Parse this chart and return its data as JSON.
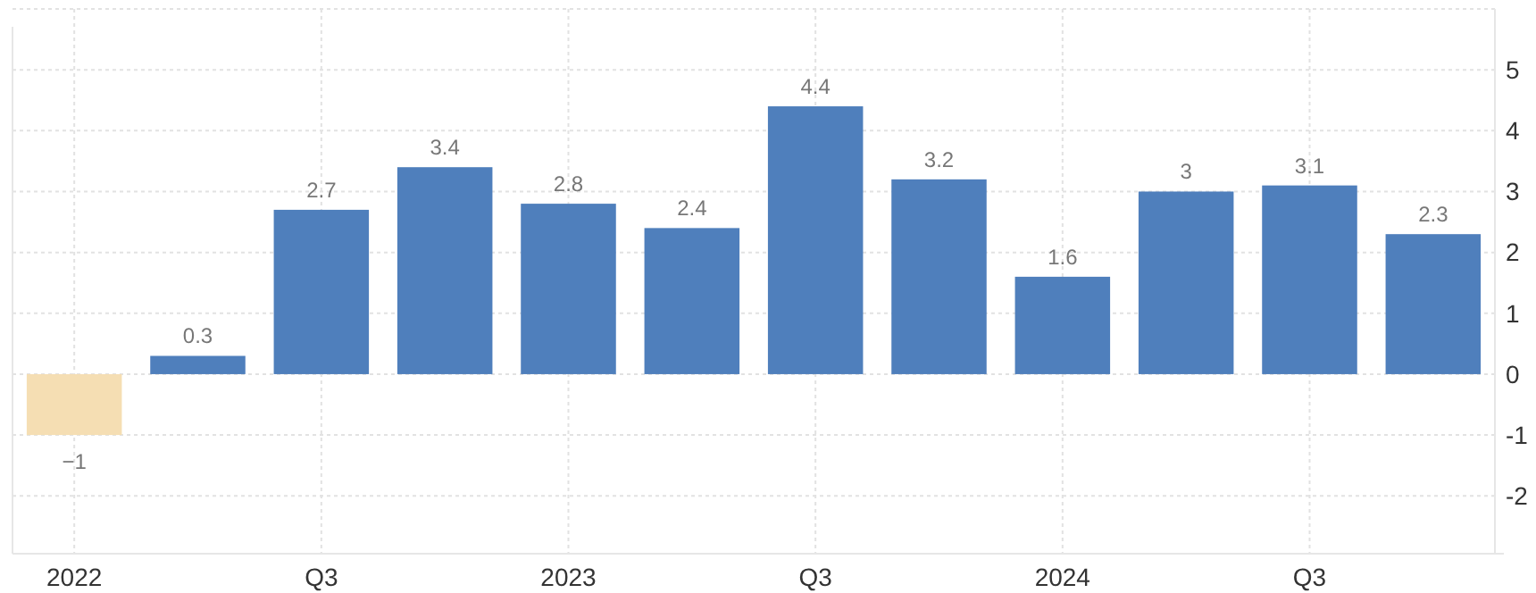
{
  "chart_data": {
    "type": "bar",
    "categories": [
      "2022",
      null,
      "Q3",
      null,
      "2023",
      null,
      "Q3",
      null,
      "2024",
      null,
      "Q3",
      null
    ],
    "values": [
      -1,
      0.3,
      2.7,
      3.4,
      2.8,
      2.4,
      4.4,
      3.2,
      1.6,
      3,
      3.1,
      2.3
    ],
    "colors": [
      "#f5deb3",
      "#4f7fbc",
      "#4f7fbc",
      "#4f7fbc",
      "#4f7fbc",
      "#4f7fbc",
      "#4f7fbc",
      "#4f7fbc",
      "#4f7fbc",
      "#4f7fbc",
      "#4f7fbc",
      "#4f7fbc"
    ],
    "ylim": [
      -2.95,
      6
    ],
    "yticks": [
      -2,
      -1,
      0,
      1,
      2,
      3,
      4,
      5
    ],
    "grid": true,
    "data_labels": true
  }
}
